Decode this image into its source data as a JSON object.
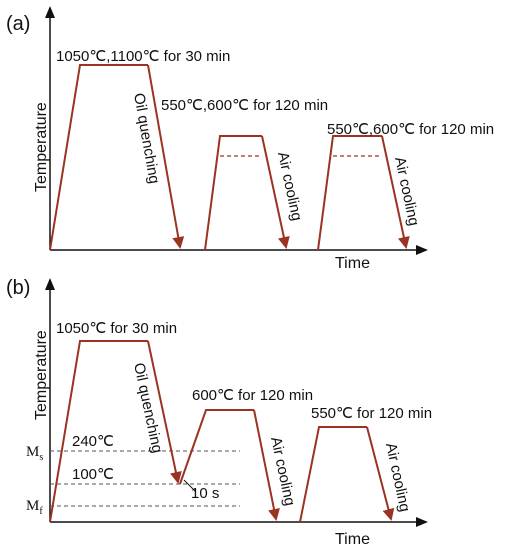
{
  "colors": {
    "curve": "#9b3322",
    "arrow_head": "#9b3322",
    "dashed_upper": "#9b3322",
    "dashed_lower": "#555555",
    "axis": "#111111",
    "background": "#ffffff"
  },
  "panel_a": {
    "label": "(a)",
    "y_axis_label": "Temperature",
    "x_axis_label": "Time",
    "step1_label": "1050℃,1100℃ for 30 min",
    "step1_cool": "Oil quenching",
    "step2_label": "550℃,600℃ for 120 min",
    "step2_cool": "Air cooling",
    "step3_label": "550℃,600℃ for 120 min",
    "step3_cool": "Air cooling"
  },
  "panel_b": {
    "label": "(b)",
    "y_axis_label": "Temperature",
    "x_axis_label": "Time",
    "step1_label": "1050℃ for 30 min",
    "step1_cool": "Oil quenching",
    "step2_label": "600℃ for 120 min",
    "step2_cool": "Air cooling",
    "step3_label": "550℃ for 120 min",
    "step3_cool": "Air cooling",
    "ms_symbol": "M",
    "ms_sub": "s",
    "mf_symbol": "M",
    "mf_sub": "f",
    "ms_temp": "240℃",
    "mid_temp": "100℃",
    "hold_time": "10 s"
  }
}
